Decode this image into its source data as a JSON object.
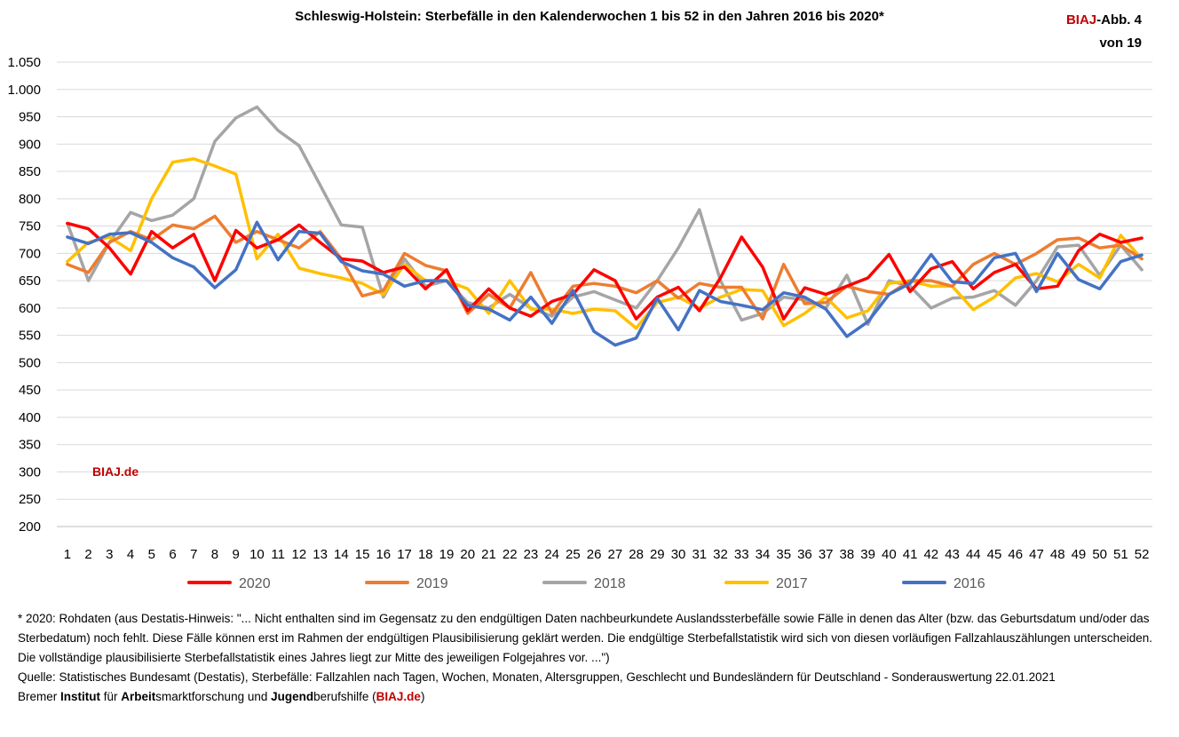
{
  "header": {
    "title": "Schleswig-Holstein: Sterbefälle in den Kalenderwochen 1 bis 52 in den Jahren 2016 bis 2020*",
    "abb_brand": "BIAJ",
    "abb_rest": "-Abb. 4",
    "abb_line2": "von 19"
  },
  "watermark": "BIAJ.de",
  "chart_data": {
    "type": "line",
    "title": "Schleswig-Holstein: Sterbefälle in den Kalenderwochen 1 bis 52 in den Jahren 2016 bis 2020*",
    "x": [
      1,
      2,
      3,
      4,
      5,
      6,
      7,
      8,
      9,
      10,
      11,
      12,
      13,
      14,
      15,
      16,
      17,
      18,
      19,
      20,
      21,
      22,
      23,
      24,
      25,
      26,
      27,
      28,
      29,
      30,
      31,
      32,
      33,
      34,
      35,
      36,
      37,
      38,
      39,
      40,
      41,
      42,
      43,
      44,
      45,
      46,
      47,
      48,
      49,
      50,
      51,
      52
    ],
    "ylim": [
      200,
      1050
    ],
    "yticks": [
      200,
      250,
      300,
      350,
      400,
      450,
      500,
      550,
      600,
      650,
      700,
      750,
      800,
      850,
      900,
      950,
      1000,
      1050
    ],
    "ytick_labels": [
      "200",
      "250",
      "300",
      "350",
      "400",
      "450",
      "500",
      "550",
      "600",
      "650",
      "700",
      "750",
      "800",
      "850",
      "900",
      "950",
      "1.000",
      "1.050"
    ],
    "grid": true,
    "legend_position": "bottom",
    "series": [
      {
        "name": "2018",
        "color": "#a5a5a5",
        "values": [
          755,
          650,
          720,
          775,
          760,
          770,
          800,
          905,
          948,
          968,
          925,
          897,
          825,
          752,
          748,
          620,
          690,
          640,
          650,
          610,
          600,
          625,
          600,
          585,
          620,
          630,
          615,
          600,
          650,
          710,
          780,
          650,
          578,
          590,
          620,
          615,
          600,
          660,
          570,
          650,
          640,
          600,
          618,
          620,
          632,
          605,
          650,
          712,
          715,
          660,
          715,
          670
        ]
      },
      {
        "name": "2017",
        "color": "#ffc000",
        "values": [
          685,
          720,
          730,
          705,
          800,
          867,
          873,
          860,
          845,
          690,
          735,
          673,
          663,
          655,
          645,
          625,
          680,
          650,
          650,
          635,
          590,
          650,
          598,
          598,
          590,
          598,
          595,
          563,
          610,
          620,
          600,
          620,
          634,
          632,
          568,
          590,
          620,
          582,
          595,
          645,
          650,
          640,
          640,
          597,
          620,
          655,
          663,
          648,
          680,
          655,
          733,
          690
        ]
      },
      {
        "name": "2019",
        "color": "#ed7d31",
        "values": [
          680,
          665,
          720,
          740,
          725,
          752,
          745,
          768,
          720,
          740,
          725,
          710,
          740,
          690,
          622,
          632,
          700,
          678,
          668,
          590,
          625,
          600,
          665,
          590,
          640,
          645,
          640,
          628,
          650,
          618,
          645,
          638,
          638,
          580,
          680,
          608,
          610,
          640,
          630,
          625,
          650,
          650,
          640,
          680,
          700,
          680,
          700,
          725,
          728,
          710,
          715,
          690
        ]
      },
      {
        "name": "2020",
        "color": "#ff0000",
        "values": [
          755,
          745,
          710,
          662,
          740,
          710,
          735,
          650,
          742,
          710,
          725,
          752,
          720,
          690,
          686,
          665,
          675,
          635,
          670,
          595,
          635,
          600,
          585,
          612,
          625,
          670,
          650,
          580,
          620,
          638,
          595,
          655,
          730,
          675,
          580,
          637,
          625,
          640,
          655,
          698,
          630,
          672,
          685,
          635,
          665,
          680,
          635,
          640,
          705,
          735,
          720,
          728
        ]
      },
      {
        "name": "2016",
        "color": "#4472c4",
        "values": [
          730,
          718,
          735,
          738,
          720,
          692,
          675,
          637,
          670,
          757,
          688,
          740,
          737,
          685,
          668,
          662,
          640,
          650,
          650,
          605,
          598,
          578,
          620,
          572,
          632,
          557,
          532,
          545,
          618,
          560,
          632,
          612,
          605,
          597,
          628,
          620,
          598,
          548,
          575,
          625,
          645,
          698,
          648,
          645,
          692,
          700,
          630,
          700,
          652,
          635,
          685,
          697
        ]
      }
    ]
  },
  "notes": {
    "line1": "* 2020: Rohdaten (aus Destatis-Hinweis: \"... Nicht enthalten sind im Gegensatz zu den endgültigen Daten nachbeurkundete Auslandssterbefälle sowie Fälle in denen das Alter (bzw. das Geburtsdatum und/oder das Sterbedatum) noch fehlt. Diese Fälle können erst im Rahmen der endgültigen Plausibilisierung geklärt werden. Die endgültige Sterbefallstatistik wird sich von diesen vorläufigen Fallzahlauszählungen unterscheiden. Die vollständige plausibilisierte Sterbefallstatistik eines Jahres liegt zur Mitte des jeweiligen Folgejahres vor. ...\")",
    "line2": "Quelle: Statistisches Bundesamt (Destatis), Sterbefälle: Fallzahlen nach Tagen, Wochen, Monaten, Altersgruppen, Geschlecht und Bundesländern für Deutschland - Sonderauswertung 22.01.2021",
    "footer": {
      "p1": "Bremer ",
      "b1": "Institut",
      "p2": " für ",
      "b2": "Arbeit",
      "p3": "smarktforschung und ",
      "b3": "Jugend",
      "p4": "berufshilfe (",
      "link": "BIAJ.de",
      "p5": ")"
    }
  }
}
